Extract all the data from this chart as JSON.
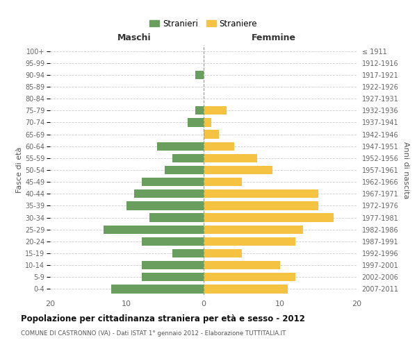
{
  "age_groups": [
    "0-4",
    "5-9",
    "10-14",
    "15-19",
    "20-24",
    "25-29",
    "30-34",
    "35-39",
    "40-44",
    "45-49",
    "50-54",
    "55-59",
    "60-64",
    "65-69",
    "70-74",
    "75-79",
    "80-84",
    "85-89",
    "90-94",
    "95-99",
    "100+"
  ],
  "birth_years": [
    "2007-2011",
    "2002-2006",
    "1997-2001",
    "1992-1996",
    "1987-1991",
    "1982-1986",
    "1977-1981",
    "1972-1976",
    "1967-1971",
    "1962-1966",
    "1957-1961",
    "1952-1956",
    "1947-1951",
    "1942-1946",
    "1937-1941",
    "1932-1936",
    "1927-1931",
    "1922-1926",
    "1917-1921",
    "1912-1916",
    "≤ 1911"
  ],
  "maschi": [
    12,
    8,
    8,
    4,
    8,
    13,
    7,
    10,
    9,
    8,
    5,
    4,
    6,
    0,
    2,
    1,
    0,
    0,
    1,
    0,
    0
  ],
  "femmine": [
    11,
    12,
    10,
    5,
    12,
    13,
    17,
    15,
    15,
    5,
    9,
    7,
    4,
    2,
    1,
    3,
    0,
    0,
    0,
    0,
    0
  ],
  "color_maschi": "#6a9e5f",
  "color_femmine": "#f5c242",
  "title": "Popolazione per cittadinanza straniera per età e sesso - 2012",
  "subtitle": "COMUNE DI CASTRONNO (VA) - Dati ISTAT 1° gennaio 2012 - Elaborazione TUTTITALIA.IT",
  "ylabel_left": "Fasce di età",
  "ylabel_right": "Anni di nascita",
  "label_maschi": "Maschi",
  "label_femmine": "Femmine",
  "legend_maschi": "Stranieri",
  "legend_femmine": "Straniere",
  "xlim": 20,
  "background_color": "#ffffff",
  "grid_color": "#cccccc"
}
